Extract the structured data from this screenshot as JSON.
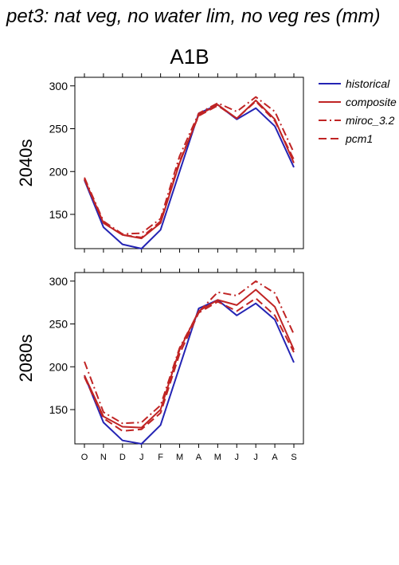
{
  "page_title": "pet3: nat veg, no water lim, no veg res (mm)",
  "scenario": "A1B",
  "colors": {
    "historical": "#2424b4",
    "model": "#c02424",
    "axis": "#000000"
  },
  "chart_data": [
    {
      "type": "line",
      "panel_label": "2040s",
      "categories": [
        "O",
        "N",
        "D",
        "J",
        "F",
        "M",
        "A",
        "M",
        "J",
        "J",
        "A",
        "S"
      ],
      "ylim": [
        110,
        310
      ],
      "yticks": [
        150,
        200,
        250,
        300
      ],
      "series": [
        {
          "name": "historical",
          "values": [
            190,
            135,
            115,
            110,
            132,
            200,
            268,
            278,
            261,
            274,
            253,
            205
          ]
        },
        {
          "name": "composite",
          "values": [
            191,
            140,
            126,
            122,
            140,
            210,
            266,
            278,
            262,
            283,
            261,
            210
          ]
        },
        {
          "name": "miroc_3.2",
          "values": [
            193,
            142,
            127,
            128,
            145,
            218,
            268,
            280,
            270,
            287,
            270,
            222
          ]
        },
        {
          "name": "pcm1",
          "values": [
            191,
            140,
            126,
            123,
            142,
            212,
            265,
            277,
            262,
            282,
            259,
            214
          ]
        }
      ]
    },
    {
      "type": "line",
      "panel_label": "2080s",
      "categories": [
        "O",
        "N",
        "D",
        "J",
        "F",
        "M",
        "A",
        "M",
        "J",
        "J",
        "A",
        "S"
      ],
      "ylim": [
        110,
        310
      ],
      "yticks": [
        150,
        200,
        250,
        300
      ],
      "series": [
        {
          "name": "historical",
          "values": [
            190,
            135,
            114,
            110,
            132,
            200,
            268,
            278,
            260,
            274,
            255,
            205
          ]
        },
        {
          "name": "composite",
          "values": [
            190,
            142,
            130,
            129,
            150,
            220,
            265,
            278,
            272,
            290,
            270,
            220
          ]
        },
        {
          "name": "miroc_3.2",
          "values": [
            206,
            147,
            134,
            135,
            155,
            222,
            264,
            287,
            283,
            300,
            286,
            238
          ]
        },
        {
          "name": "pcm1",
          "values": [
            188,
            140,
            125,
            127,
            146,
            215,
            263,
            276,
            265,
            280,
            260,
            217
          ]
        }
      ]
    }
  ],
  "legend": [
    {
      "name": "historical",
      "color": "#2424b4",
      "dash": "solid"
    },
    {
      "name": "composite",
      "color": "#c02424",
      "dash": "solid"
    },
    {
      "name": "miroc_3.2",
      "color": "#c02424",
      "dash": "dashdot"
    },
    {
      "name": "pcm1",
      "color": "#c02424",
      "dash": "dashed"
    }
  ]
}
